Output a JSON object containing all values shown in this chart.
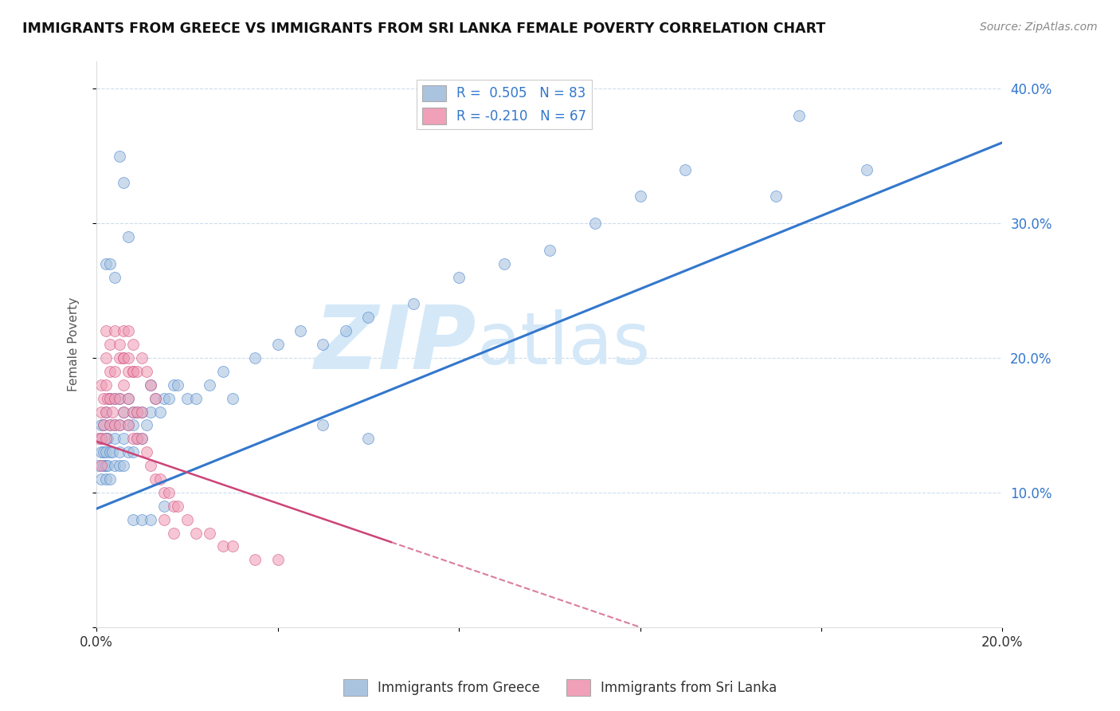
{
  "title": "IMMIGRANTS FROM GREECE VS IMMIGRANTS FROM SRI LANKA FEMALE POVERTY CORRELATION CHART",
  "source": "Source: ZipAtlas.com",
  "ylabel": "Female Poverty",
  "xlim": [
    0,
    0.2
  ],
  "ylim": [
    0,
    0.42
  ],
  "x_tick_positions": [
    0.0,
    0.04,
    0.08,
    0.12,
    0.16,
    0.2
  ],
  "y_tick_positions": [
    0.0,
    0.1,
    0.2,
    0.3,
    0.4
  ],
  "legend1_label": "R =  0.505   N = 83",
  "legend2_label": "R = -0.210   N = 67",
  "bottom_legend1": "Immigrants from Greece",
  "bottom_legend2": "Immigrants from Sri Lanka",
  "color_greece": "#aac4e0",
  "color_srilanka": "#f0a0b8",
  "line_color_greece": "#3377cc",
  "line_color_srilanka": "#cc4477",
  "watermark_zip": "ZIP",
  "watermark_atlas": "atlas",
  "watermark_color": "#d4e8f8",
  "greece_line_x0": 0.0,
  "greece_line_y0": 0.088,
  "greece_line_x1": 0.2,
  "greece_line_y1": 0.36,
  "srilanka_line_x0": 0.0,
  "srilanka_line_y0": 0.138,
  "srilanka_line_x1": 0.12,
  "srilanka_line_y1": 0.0,
  "greece_x": [
    0.0005,
    0.001,
    0.001,
    0.001,
    0.001,
    0.0015,
    0.0015,
    0.0015,
    0.002,
    0.002,
    0.002,
    0.002,
    0.002,
    0.0025,
    0.0025,
    0.003,
    0.003,
    0.003,
    0.003,
    0.0035,
    0.004,
    0.004,
    0.004,
    0.004,
    0.005,
    0.005,
    0.005,
    0.005,
    0.006,
    0.006,
    0.006,
    0.007,
    0.007,
    0.007,
    0.008,
    0.008,
    0.008,
    0.009,
    0.009,
    0.01,
    0.01,
    0.011,
    0.012,
    0.012,
    0.013,
    0.014,
    0.015,
    0.016,
    0.017,
    0.018,
    0.02,
    0.022,
    0.025,
    0.028,
    0.03,
    0.035,
    0.04,
    0.045,
    0.05,
    0.055,
    0.06,
    0.07,
    0.08,
    0.09,
    0.1,
    0.11,
    0.12,
    0.13,
    0.05,
    0.06,
    0.002,
    0.003,
    0.004,
    0.005,
    0.006,
    0.007,
    0.008,
    0.01,
    0.012,
    0.015,
    0.15,
    0.17,
    0.155
  ],
  "greece_y": [
    0.12,
    0.11,
    0.13,
    0.14,
    0.15,
    0.12,
    0.13,
    0.15,
    0.11,
    0.12,
    0.13,
    0.14,
    0.16,
    0.12,
    0.14,
    0.11,
    0.13,
    0.15,
    0.17,
    0.13,
    0.12,
    0.14,
    0.15,
    0.17,
    0.12,
    0.13,
    0.15,
    0.17,
    0.12,
    0.14,
    0.16,
    0.13,
    0.15,
    0.17,
    0.13,
    0.15,
    0.16,
    0.14,
    0.16,
    0.14,
    0.16,
    0.15,
    0.16,
    0.18,
    0.17,
    0.16,
    0.17,
    0.17,
    0.18,
    0.18,
    0.17,
    0.17,
    0.18,
    0.19,
    0.17,
    0.2,
    0.21,
    0.22,
    0.21,
    0.22,
    0.23,
    0.24,
    0.26,
    0.27,
    0.28,
    0.3,
    0.32,
    0.34,
    0.15,
    0.14,
    0.27,
    0.27,
    0.26,
    0.35,
    0.33,
    0.29,
    0.08,
    0.08,
    0.08,
    0.09,
    0.32,
    0.34,
    0.38
  ],
  "srilanka_x": [
    0.0005,
    0.001,
    0.001,
    0.001,
    0.001,
    0.0015,
    0.0015,
    0.002,
    0.002,
    0.002,
    0.002,
    0.0025,
    0.003,
    0.003,
    0.003,
    0.0035,
    0.004,
    0.004,
    0.004,
    0.005,
    0.005,
    0.005,
    0.006,
    0.006,
    0.006,
    0.007,
    0.007,
    0.007,
    0.008,
    0.008,
    0.008,
    0.009,
    0.009,
    0.01,
    0.01,
    0.011,
    0.012,
    0.013,
    0.014,
    0.015,
    0.016,
    0.017,
    0.018,
    0.02,
    0.022,
    0.025,
    0.028,
    0.03,
    0.035,
    0.04,
    0.002,
    0.003,
    0.004,
    0.005,
    0.006,
    0.006,
    0.007,
    0.007,
    0.008,
    0.008,
    0.009,
    0.01,
    0.011,
    0.012,
    0.013,
    0.015,
    0.017
  ],
  "srilanka_y": [
    0.14,
    0.12,
    0.14,
    0.16,
    0.18,
    0.15,
    0.17,
    0.14,
    0.16,
    0.18,
    0.2,
    0.17,
    0.15,
    0.17,
    0.19,
    0.16,
    0.15,
    0.17,
    0.19,
    0.15,
    0.17,
    0.2,
    0.16,
    0.18,
    0.2,
    0.15,
    0.17,
    0.19,
    0.14,
    0.16,
    0.19,
    0.14,
    0.16,
    0.14,
    0.16,
    0.13,
    0.12,
    0.11,
    0.11,
    0.1,
    0.1,
    0.09,
    0.09,
    0.08,
    0.07,
    0.07,
    0.06,
    0.06,
    0.05,
    0.05,
    0.22,
    0.21,
    0.22,
    0.21,
    0.22,
    0.2,
    0.22,
    0.2,
    0.21,
    0.19,
    0.19,
    0.2,
    0.19,
    0.18,
    0.17,
    0.08,
    0.07
  ]
}
